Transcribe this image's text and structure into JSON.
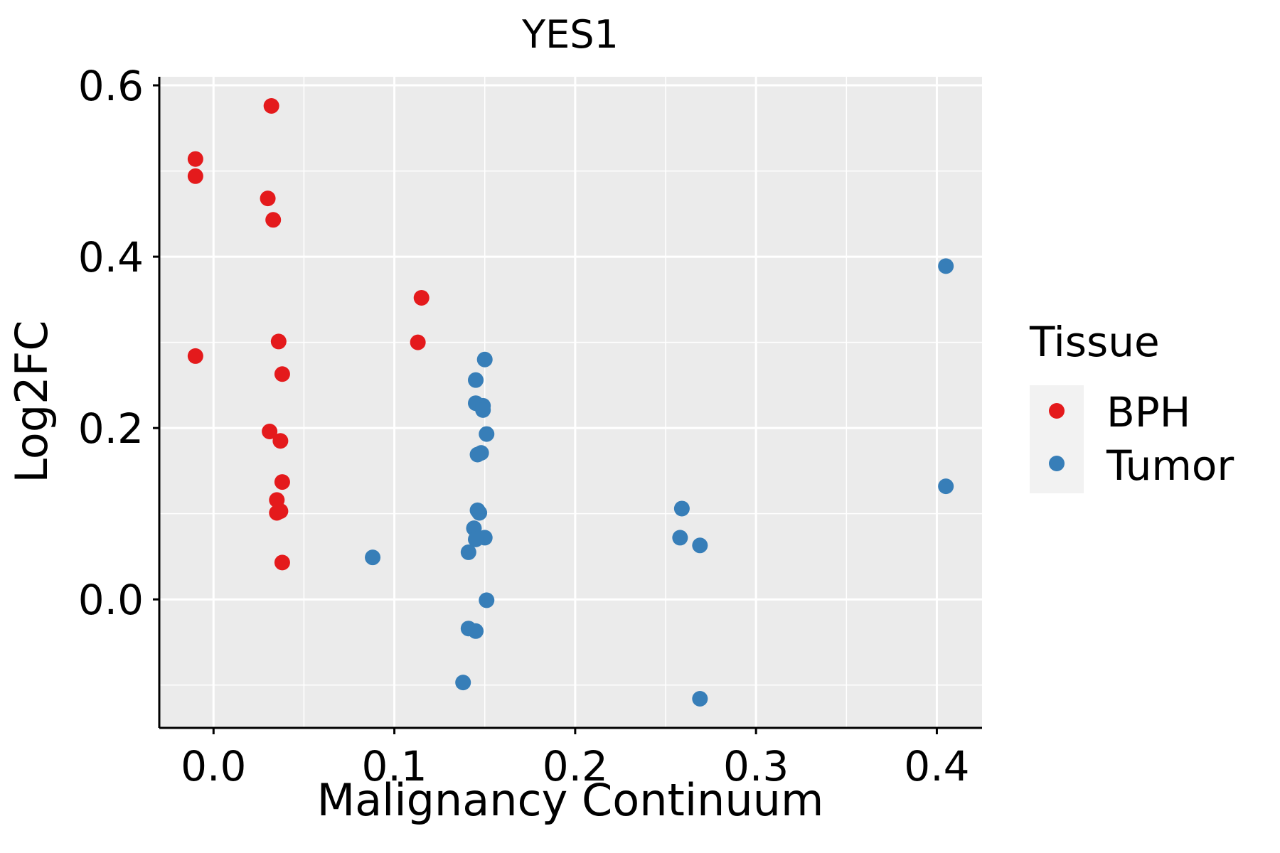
{
  "chart_data": {
    "type": "scatter",
    "title": "YES1",
    "xlabel": "Malignancy Continuum",
    "ylabel": "Log2FC",
    "xlim": [
      -0.03,
      0.425
    ],
    "ylim": [
      -0.15,
      0.61
    ],
    "xticks": [
      0.0,
      0.1,
      0.2,
      0.3,
      0.4
    ],
    "xtick_labels": [
      "0.0",
      "0.1",
      "0.2",
      "0.3",
      "0.4"
    ],
    "yticks": [
      0.0,
      0.2,
      0.4,
      0.6
    ],
    "ytick_labels": [
      "0.0",
      "0.2",
      "0.4",
      "0.6"
    ],
    "grid": true,
    "panel_background": "#ebebeb",
    "legend": {
      "title": "Tissue",
      "position": "right"
    },
    "series": [
      {
        "name": "BPH",
        "color": "#e41a1c",
        "points": [
          [
            0.032,
            0.576
          ],
          [
            -0.01,
            0.514
          ],
          [
            -0.01,
            0.494
          ],
          [
            0.03,
            0.468
          ],
          [
            0.033,
            0.443
          ],
          [
            0.115,
            0.352
          ],
          [
            0.036,
            0.301
          ],
          [
            0.113,
            0.3
          ],
          [
            -0.01,
            0.284
          ],
          [
            0.038,
            0.263
          ],
          [
            0.031,
            0.196
          ],
          [
            0.037,
            0.185
          ],
          [
            0.038,
            0.137
          ],
          [
            0.035,
            0.116
          ],
          [
            0.037,
            0.103
          ],
          [
            0.035,
            0.101
          ],
          [
            0.038,
            0.043
          ]
        ]
      },
      {
        "name": "Tumor",
        "color": "#377eb8",
        "points": [
          [
            0.405,
            0.389
          ],
          [
            0.15,
            0.28
          ],
          [
            0.145,
            0.256
          ],
          [
            0.145,
            0.229
          ],
          [
            0.149,
            0.226
          ],
          [
            0.149,
            0.221
          ],
          [
            0.151,
            0.193
          ],
          [
            0.148,
            0.171
          ],
          [
            0.146,
            0.169
          ],
          [
            0.405,
            0.132
          ],
          [
            0.259,
            0.106
          ],
          [
            0.146,
            0.104
          ],
          [
            0.147,
            0.101
          ],
          [
            0.144,
            0.083
          ],
          [
            0.258,
            0.072
          ],
          [
            0.15,
            0.072
          ],
          [
            0.145,
            0.07
          ],
          [
            0.269,
            0.063
          ],
          [
            0.141,
            0.055
          ],
          [
            0.088,
            0.049
          ],
          [
            0.151,
            -0.001
          ],
          [
            0.141,
            -0.034
          ],
          [
            0.145,
            -0.037
          ],
          [
            0.138,
            -0.097
          ],
          [
            0.269,
            -0.116
          ]
        ]
      }
    ]
  }
}
